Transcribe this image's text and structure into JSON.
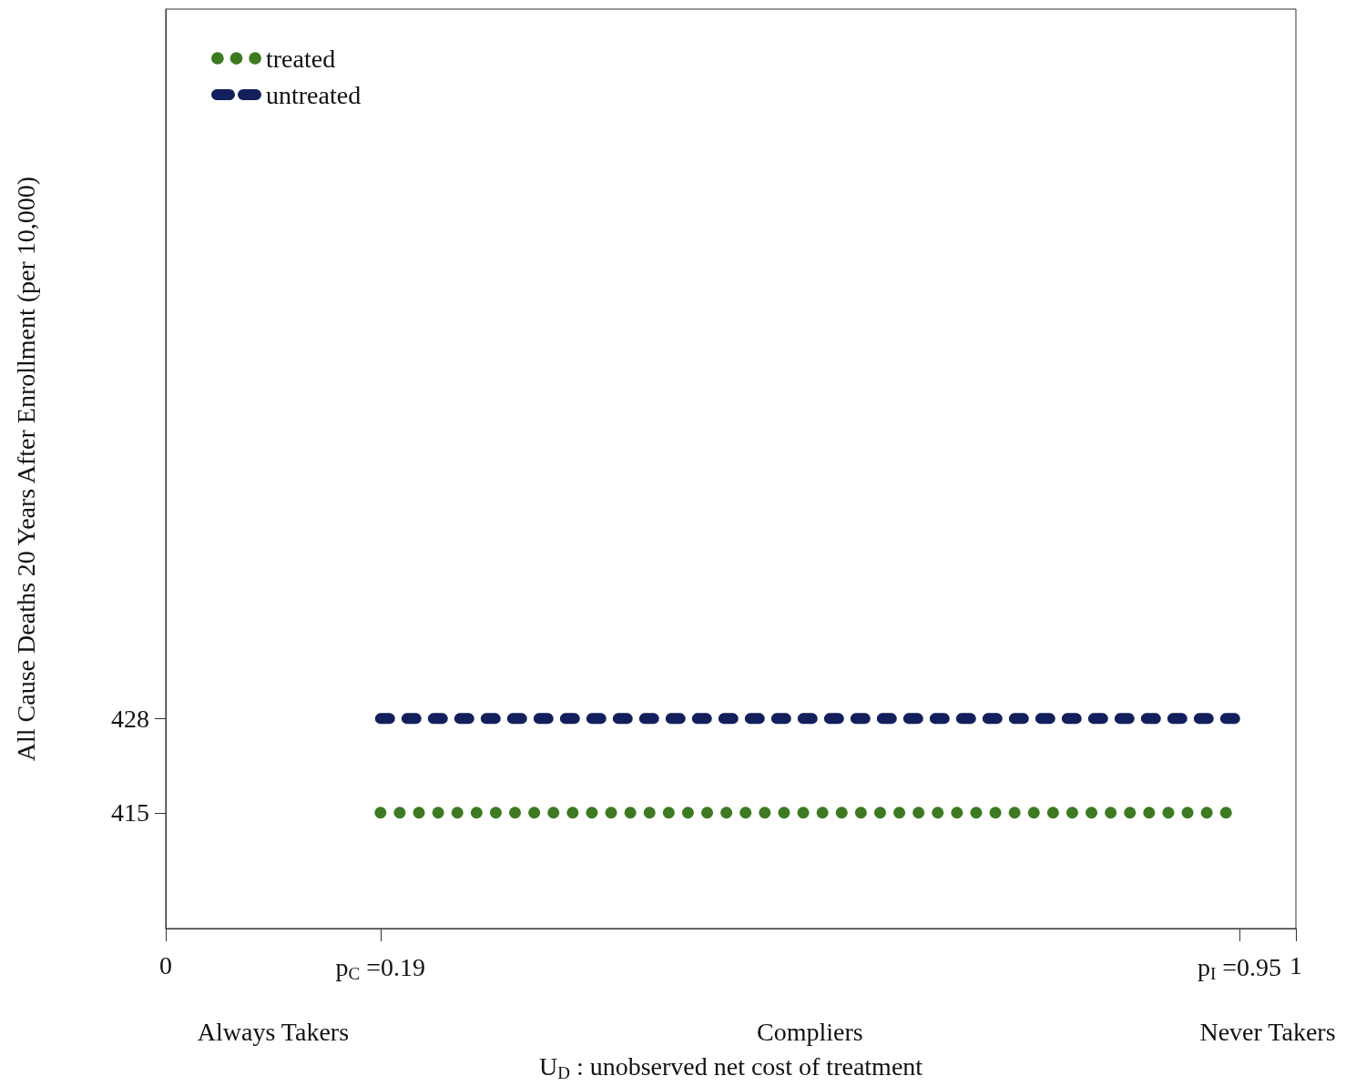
{
  "chart_data": {
    "type": "line",
    "xlabel": "U$_{D}$ : unobserved net cost of treatment",
    "ylabel": "All Cause Deaths 20 Years After Enrollment (per 10,000)",
    "xlim": [
      0,
      1
    ],
    "xticks": [
      0,
      {
        "value": 0.19,
        "label": "p$_{C}$ =0.19"
      },
      {
        "value": 0.95,
        "label": "p$_{I}$ =0.95"
      },
      1
    ],
    "ylim": [
      399,
      526
    ],
    "yticks": [
      415,
      428
    ],
    "x": [
      0.19,
      0.95
    ],
    "series": [
      {
        "name": "treated",
        "color": "#3d7a21",
        "line_style": "dotted",
        "values": [
          415,
          415
        ]
      },
      {
        "name": "untreated",
        "color": "#131f5c",
        "line_style": "dashed",
        "values": [
          428,
          428
        ]
      }
    ],
    "annotations": [
      "Always Takers",
      "Compliers",
      "Never Takers"
    ],
    "marker": "none",
    "grid": false,
    "legend": "top left"
  }
}
